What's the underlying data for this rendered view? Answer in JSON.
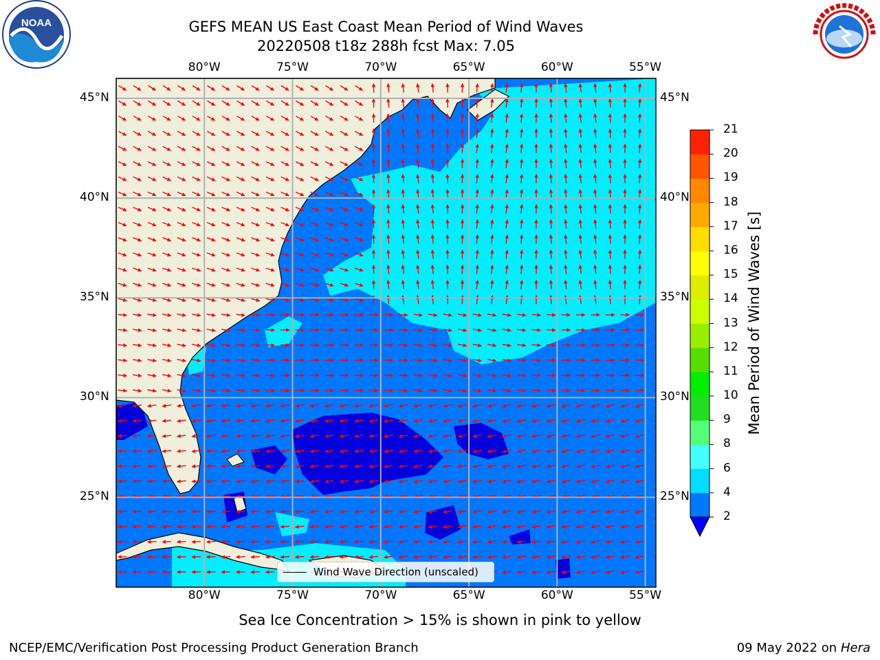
{
  "title_line1": "GEFS MEAN US East Coast Mean Period of Wind Waves",
  "title_line2": "20220508 t18z 288h fcst   Max: 7.05",
  "lon_labels": [
    "80°W",
    "75°W",
    "70°W",
    "65°W",
    "60°W",
    "55°W"
  ],
  "lat_labels": [
    "45°N",
    "40°N",
    "35°N",
    "30°N",
    "25°N"
  ],
  "map_extent": {
    "lon": [
      -85,
      -54.4
    ],
    "lat": [
      20.5,
      46
    ]
  },
  "colorbar": {
    "title": "Mean Period of Wind Waves [s]",
    "ticks": [
      "2",
      "4",
      "6",
      "8",
      "9",
      "10",
      "11",
      "12",
      "13",
      "14",
      "15",
      "16",
      "17",
      "18",
      "19",
      "20",
      "21"
    ],
    "colors": [
      "#0077ff",
      "#00ddff",
      "#44ffff",
      "#99ffff",
      "#55ff77",
      "#22dd22",
      "#00ee00",
      "#55dd00",
      "#99ee00",
      "#ccff00",
      "#ddee00",
      "#ffff00",
      "#ffdd00",
      "#ffaa00",
      "#ff8800",
      "#ff5500",
      "#ff2200",
      "#ff0000"
    ],
    "under_color": "#0000ff"
  },
  "legend_label": "Wind Wave Direction (unscaled)",
  "subnote": "Sea Ice Concentration > 15% is shown in pink to yellow",
  "footer_left": "NCEP/EMC/Verification Post Processing Product Generation Branch",
  "footer_date": "09 May 2022 on",
  "footer_host": "Hera",
  "colors": {
    "land": "#efefdc",
    "ocean_base": "#0077ff",
    "low_period": "#0000dd",
    "high_period": "#00eeff",
    "arrow": "#ff0000",
    "grid": "#b0b0b0"
  },
  "logos": {
    "left": "noaa-logo",
    "right": "nws-logo"
  }
}
